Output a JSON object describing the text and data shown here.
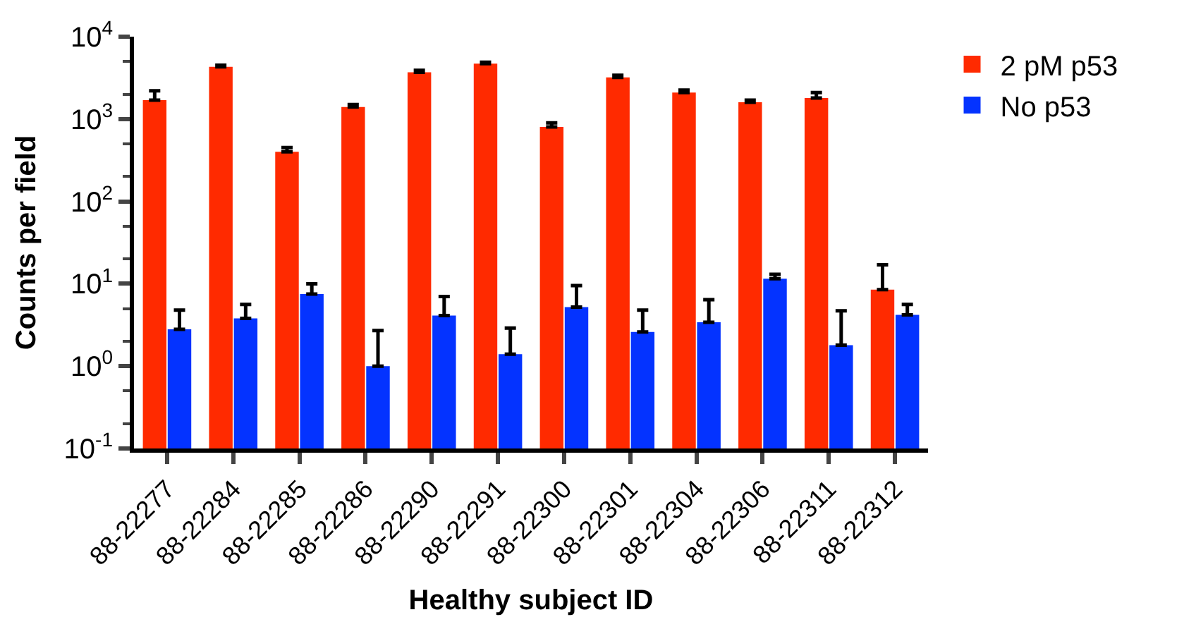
{
  "chart_data": {
    "type": "bar",
    "xlabel": "Healthy subject ID",
    "ylabel": "Counts per field",
    "log": true,
    "legend": "top right",
    "categories": [
      "88-22277",
      "88-22284",
      "88-22285",
      "88-22286",
      "88-22290",
      "88-22291",
      "88-22300",
      "88-22301",
      "88-22304",
      "88-22306",
      "88-22311",
      "88-22312"
    ],
    "ylim": [
      0.1,
      10000
    ],
    "yticks": [
      {
        "value": 0.1,
        "label": "10$^{-1}$"
      },
      {
        "value": 1,
        "label": "10$^{0}$"
      },
      {
        "value": 10,
        "label": "10$^{1}$"
      },
      {
        "value": 100,
        "label": "10$^{2}$"
      },
      {
        "value": 1000,
        "label": "10$^{3}$"
      },
      {
        "value": 10000,
        "label": "10$^{4}$"
      }
    ],
    "series": [
      {
        "name": "2 pM p53",
        "color": "#ff2a00",
        "values": [
          1700,
          4300,
          400,
          1400,
          3700,
          4700,
          800,
          3200,
          2100,
          1600,
          1800,
          8.5
        ],
        "errors": [
          [
            1700,
            2200
          ],
          [
            4300,
            4500
          ],
          [
            400,
            450
          ],
          [
            1400,
            1500
          ],
          [
            3700,
            3900
          ],
          [
            4700,
            4900
          ],
          [
            800,
            900
          ],
          [
            3200,
            3400
          ],
          [
            2100,
            2250
          ],
          [
            1600,
            1700
          ],
          [
            1800,
            2100
          ],
          [
            8.5,
            17
          ]
        ]
      },
      {
        "name": "No p53",
        "color": "#0433ff",
        "values": [
          2.8,
          3.8,
          7.5,
          1.0,
          4.1,
          1.4,
          5.2,
          2.6,
          3.4,
          11.5,
          1.8,
          4.2
        ],
        "errors": [
          [
            2.8,
            4.8
          ],
          [
            3.8,
            5.6
          ],
          [
            7.5,
            10
          ],
          [
            1.0,
            2.7
          ],
          [
            4.1,
            7
          ],
          [
            1.4,
            2.9
          ],
          [
            5.2,
            9.5
          ],
          [
            2.6,
            4.8
          ],
          [
            3.4,
            6.4
          ],
          [
            11.5,
            13
          ],
          [
            1.8,
            4.7
          ],
          [
            4.2,
            5.6
          ]
        ]
      }
    ]
  }
}
